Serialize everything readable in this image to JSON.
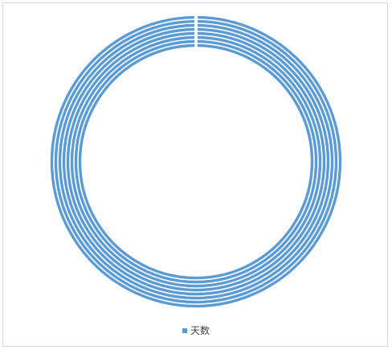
{
  "chart_data": {
    "type": "doughnut",
    "title": "",
    "legend": {
      "position": "bottom",
      "entries": [
        "天数"
      ]
    },
    "series_color": "#5B9BD5",
    "series": [
      {
        "name": "天数",
        "values": [
          1
        ]
      },
      {
        "name": "天数",
        "values": [
          1
        ]
      },
      {
        "name": "天数",
        "values": [
          1
        ]
      },
      {
        "name": "天数",
        "values": [
          1
        ]
      },
      {
        "name": "天数",
        "values": [
          1
        ]
      },
      {
        "name": "天数",
        "values": [
          1
        ]
      },
      {
        "name": "天数",
        "values": [
          1
        ]
      },
      {
        "name": "天数",
        "values": [
          1
        ]
      }
    ]
  }
}
